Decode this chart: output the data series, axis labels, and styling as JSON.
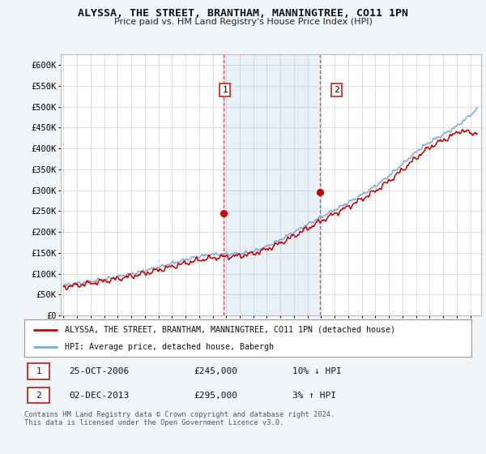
{
  "title": "ALYSSA, THE STREET, BRANTHAM, MANNINGTREE, CO11 1PN",
  "subtitle": "Price paid vs. HM Land Registry's House Price Index (HPI)",
  "ylabel_ticks": [
    "£0",
    "£50K",
    "£100K",
    "£150K",
    "£200K",
    "£250K",
    "£300K",
    "£350K",
    "£400K",
    "£450K",
    "£500K",
    "£550K",
    "£600K"
  ],
  "ytick_values": [
    0,
    50000,
    100000,
    150000,
    200000,
    250000,
    300000,
    350000,
    400000,
    450000,
    500000,
    550000,
    600000
  ],
  "ylim": [
    0,
    625000
  ],
  "xlim_start": 1994.8,
  "xlim_end": 2025.8,
  "red_line_color": "#cc0000",
  "blue_line_color": "#7aaadd",
  "marker1_date": 2006.82,
  "marker1_value": 245000,
  "marker2_date": 2013.92,
  "marker2_value": 295000,
  "vline1_x": 2006.82,
  "vline2_x": 2013.92,
  "legend_line1": "ALYSSA, THE STREET, BRANTHAM, MANNINGTREE, CO11 1PN (detached house)",
  "legend_line2": "HPI: Average price, detached house, Babergh",
  "table_row1_date": "25-OCT-2006",
  "table_row1_price": "£245,000",
  "table_row1_hpi": "10% ↓ HPI",
  "table_row2_date": "02-DEC-2013",
  "table_row2_price": "£295,000",
  "table_row2_hpi": "3% ↑ HPI",
  "footnote": "Contains HM Land Registry data © Crown copyright and database right 2024.\nThis data is licensed under the Open Government Licence v3.0.",
  "background_color": "#f2f5f8",
  "plot_bg_color": "#ffffff",
  "span_color": "#cce0f0",
  "grid_color": "#cccccc"
}
